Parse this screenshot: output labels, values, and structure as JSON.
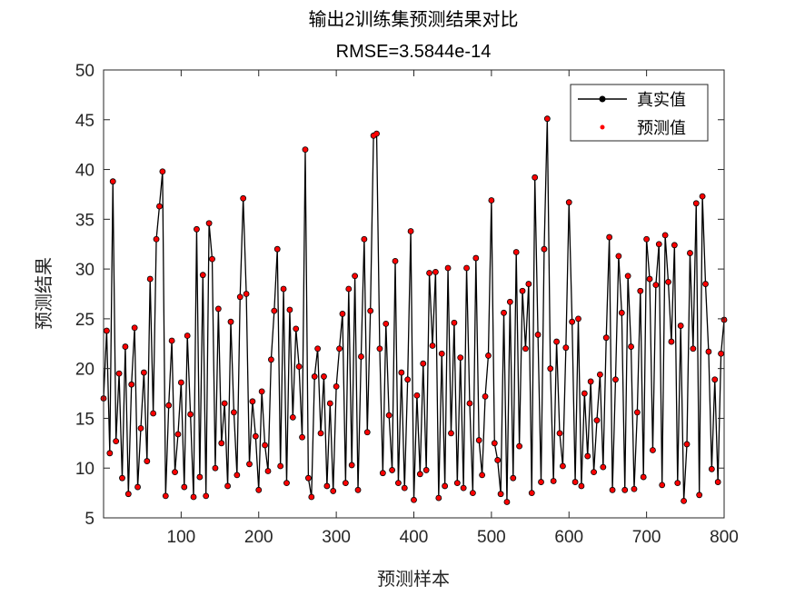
{
  "chart_data": {
    "type": "line",
    "title": "输出2训练集预测结果对比",
    "subtitle": "RMSE=3.5844e-14",
    "xlabel": "预测样本",
    "ylabel": "预测结果",
    "xlim": [
      0,
      800
    ],
    "ylim": [
      5,
      50
    ],
    "xticks": [
      100,
      200,
      300,
      400,
      500,
      600,
      700,
      800
    ],
    "yticks": [
      5,
      10,
      15,
      20,
      25,
      30,
      35,
      40,
      45,
      50
    ],
    "grid": false,
    "legend_position": "top-right",
    "x_start": 0,
    "x_step": 4,
    "series": [
      {
        "name": "真实值",
        "style": "line-with-dots",
        "color": "#000000"
      },
      {
        "name": "预测值",
        "style": "dots",
        "color": "#ff0000"
      }
    ],
    "values": [
      17,
      23.8,
      11.5,
      38.8,
      12.7,
      19.5,
      9,
      22.2,
      7.4,
      18.4,
      24.1,
      8.1,
      14,
      19.6,
      10.7,
      29,
      15.5,
      33,
      36.3,
      39.8,
      7.2,
      16.3,
      22.8,
      9.6,
      13.4,
      18.6,
      8.1,
      23.3,
      15.4,
      7.1,
      34,
      9.1,
      29.4,
      7.2,
      34.6,
      31,
      10,
      26,
      12.5,
      16.5,
      8.2,
      24.7,
      15.6,
      9.3,
      27.2,
      37.1,
      27.5,
      10.4,
      16.7,
      13.2,
      7.8,
      17.7,
      12.3,
      9.7,
      20.9,
      25.8,
      32,
      10.2,
      28,
      8.5,
      25.9,
      15.1,
      24,
      20.2,
      13.1,
      42,
      9,
      7.1,
      19.2,
      22,
      13.5,
      19.2,
      8.2,
      16.5,
      7.7,
      18.2,
      22,
      25.5,
      8.5,
      28,
      10.3,
      29.3,
      7.8,
      21.2,
      33,
      13.6,
      25.8,
      43.4,
      43.6,
      22,
      9.5,
      24.5,
      15.3,
      9.8,
      30.8,
      8.5,
      19.6,
      8,
      18.9,
      33.8,
      6.8,
      17.3,
      9.4,
      20.5,
      9.8,
      29.6,
      22.3,
      29.7,
      7,
      21.5,
      8.2,
      30.1,
      13.5,
      24.6,
      8.5,
      21.1,
      8,
      30.1,
      16.5,
      7.5,
      31.1,
      12.8,
      9.3,
      17.2,
      21.3,
      36.9,
      12.5,
      10.8,
      7.4,
      25.6,
      6.6,
      26.7,
      9,
      31.7,
      12.2,
      27.8,
      22,
      28.5,
      7.5,
      39.2,
      23.4,
      8.6,
      32,
      45.1,
      20,
      8.7,
      22.7,
      13.5,
      10.2,
      22.1,
      36.7,
      24.7,
      8.6,
      25,
      8.2,
      17.5,
      11.2,
      18.7,
      9.6,
      14.8,
      19.4,
      10.1,
      23.1,
      33.2,
      7.8,
      18.9,
      31.3,
      25.6,
      7.8,
      29.3,
      22.2,
      7.9,
      15.6,
      27.8,
      9.1,
      33,
      29,
      11.8,
      28.4,
      32.5,
      8.3,
      33.4,
      28.7,
      22.7,
      32.4,
      8.5,
      24.3,
      6.7,
      12.4,
      31.6,
      22,
      36.6,
      7.3,
      37.3,
      28.5,
      21.7,
      9.9,
      18.9,
      8.6,
      21.5,
      24.9
    ]
  }
}
